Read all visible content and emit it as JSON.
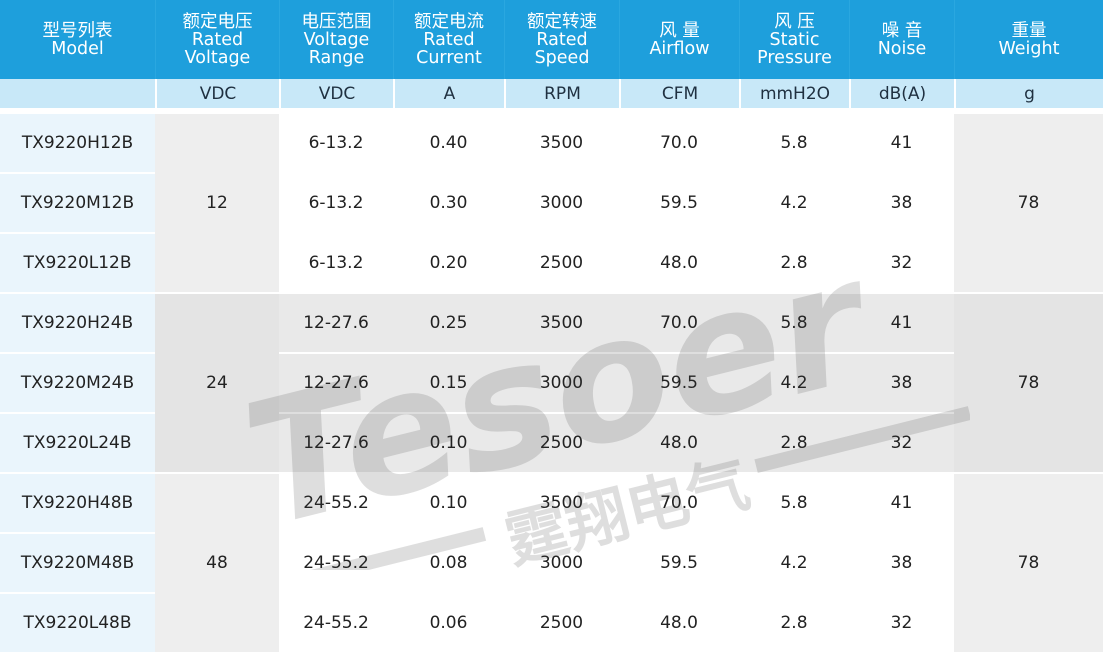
{
  "table": {
    "headers": [
      {
        "zh": "型号列表",
        "en": [
          "Model"
        ]
      },
      {
        "zh": "额定电压",
        "en": [
          "Rated",
          "Voltage"
        ]
      },
      {
        "zh": "电压范围",
        "en": [
          "Voltage",
          "Range"
        ]
      },
      {
        "zh": "额定电流",
        "en": [
          "Rated",
          "Current"
        ]
      },
      {
        "zh": "额定转速",
        "en": [
          "Rated",
          "Speed"
        ]
      },
      {
        "zh": "风 量",
        "en": [
          "Airflow"
        ]
      },
      {
        "zh": "风 压",
        "en": [
          "Static",
          "Pressure"
        ]
      },
      {
        "zh": "噪 音",
        "en": [
          "Noise"
        ]
      },
      {
        "zh": "重量",
        "en": [
          "Weight"
        ]
      }
    ],
    "units": [
      "",
      "VDC",
      "VDC",
      "A",
      "RPM",
      "CFM",
      "mmH2O",
      "dB(A)",
      "g"
    ],
    "groups": [
      {
        "rated_voltage": "12",
        "weight": "78",
        "rows": [
          {
            "model": "TX9220H12B",
            "range": "6-13.2",
            "current": "0.40",
            "speed": "3500",
            "airflow": "70.0",
            "pressure": "5.8",
            "noise": "41"
          },
          {
            "model": "TX9220M12B",
            "range": "6-13.2",
            "current": "0.30",
            "speed": "3000",
            "airflow": "59.5",
            "pressure": "4.2",
            "noise": "38"
          },
          {
            "model": "TX9220L12B",
            "range": "6-13.2",
            "current": "0.20",
            "speed": "2500",
            "airflow": "48.0",
            "pressure": "2.8",
            "noise": "32"
          }
        ]
      },
      {
        "rated_voltage": "24",
        "weight": "78",
        "rows": [
          {
            "model": "TX9220H24B",
            "range": "12-27.6",
            "current": "0.25",
            "speed": "3500",
            "airflow": "70.0",
            "pressure": "5.8",
            "noise": "41"
          },
          {
            "model": "TX9220M24B",
            "range": "12-27.6",
            "current": "0.15",
            "speed": "3000",
            "airflow": "59.5",
            "pressure": "4.2",
            "noise": "38"
          },
          {
            "model": "TX9220L24B",
            "range": "12-27.6",
            "current": "0.10",
            "speed": "2500",
            "airflow": "48.0",
            "pressure": "2.8",
            "noise": "32"
          }
        ]
      },
      {
        "rated_voltage": "48",
        "weight": "78",
        "rows": [
          {
            "model": "TX9220H48B",
            "range": "24-55.2",
            "current": "0.10",
            "speed": "3500",
            "airflow": "70.0",
            "pressure": "5.8",
            "noise": "41"
          },
          {
            "model": "TX9220M48B",
            "range": "24-55.2",
            "current": "0.08",
            "speed": "3000",
            "airflow": "59.5",
            "pressure": "4.2",
            "noise": "38"
          },
          {
            "model": "TX9220L48B",
            "range": "24-55.2",
            "current": "0.06",
            "speed": "2500",
            "airflow": "48.0",
            "pressure": "2.8",
            "noise": "32"
          }
        ]
      }
    ]
  },
  "watermark": {
    "brand_latin": "Tesoer",
    "brand_zh": "霆翔电气",
    "color": "#3a3a3a"
  },
  "colors": {
    "header_bg": "#1e9fdc",
    "units_bg": "#c8e8f8",
    "model_bg": "#eaf5fc"
  }
}
